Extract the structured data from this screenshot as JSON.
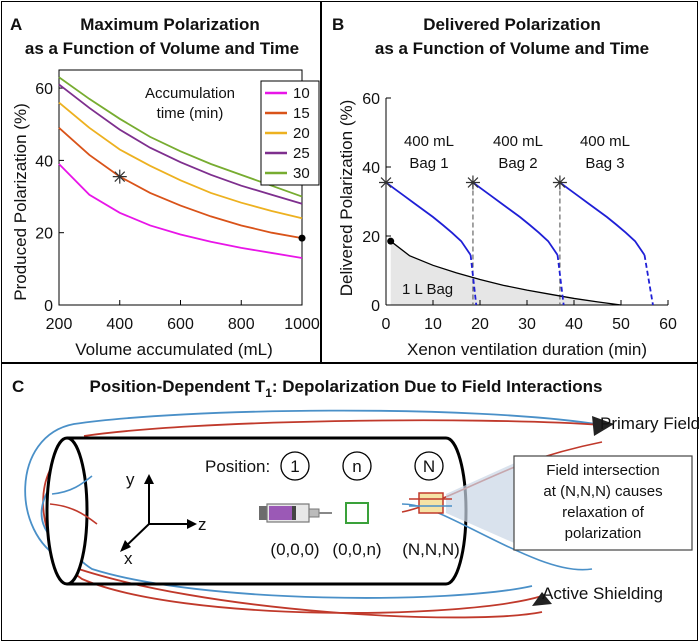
{
  "panel_a": {
    "letter": "A",
    "title_line1": "Maximum Polarization",
    "title_line2": "as a Function of Volume and Time",
    "legend_title_line1": "Accumulation",
    "legend_title_line2": "time (min)"
  },
  "panel_b": {
    "letter": "B",
    "title_line1": "Delivered Polarization",
    "title_line2": "as a Function of Volume and Time",
    "bags": [
      {
        "line1": "400 mL",
        "line2": "Bag 1"
      },
      {
        "line1": "400 mL",
        "line2": "Bag 2"
      },
      {
        "line1": "400 mL",
        "line2": "Bag 3"
      }
    ],
    "big_bag_label": "1 L Bag"
  },
  "panel_c": {
    "letter": "C",
    "title_prefix": "Position-Dependent T",
    "title_sub": "1",
    "title_suffix": ": Depolarization Due to Field Interactions",
    "primary_field_label": "Primary Field",
    "active_shielding_label": "Active Shielding",
    "position_label": "Position:",
    "positions": [
      {
        "id": "1",
        "coord": "(0,0,0)"
      },
      {
        "id": "n",
        "coord": "(0,0,n)"
      },
      {
        "id": "N",
        "coord": "(N,N,N)"
      }
    ],
    "axes": {
      "x": "x",
      "y": "y",
      "z": "z"
    },
    "callout_lines": [
      "Field intersection",
      "at (N,N,N) causes",
      "relaxation of",
      "polarization"
    ],
    "colors": {
      "primary_field": "#4a90c8",
      "active_shielding": "#c0392b",
      "syringe": "#9b59b6",
      "marker_n": "#3aa13a",
      "marker_N_fill": "#f6e3a6"
    }
  },
  "chart_data": [
    {
      "type": "line",
      "title": "Maximum Polarization as a Function of Volume and Time",
      "xlabel": "Volume accumulated (mL)",
      "ylabel": "Produced Polarization (%)",
      "xlim": [
        200,
        1000
      ],
      "ylim": [
        0,
        65
      ],
      "xticks": [
        200,
        400,
        600,
        800,
        1000
      ],
      "yticks": [
        0,
        20,
        40,
        60
      ],
      "legend_title": "Accumulation time (min)",
      "legend_position": "top-right",
      "x": [
        200,
        300,
        400,
        500,
        600,
        700,
        800,
        900,
        1000
      ],
      "series": [
        {
          "name": "10",
          "color": "#e815e8",
          "values": [
            39,
            30.5,
            25.5,
            22,
            19.5,
            17.5,
            15.8,
            14.4,
            13
          ]
        },
        {
          "name": "15",
          "color": "#d95319",
          "values": [
            49,
            41.5,
            35.5,
            31,
            27.5,
            24.5,
            22,
            20,
            18.5
          ]
        },
        {
          "name": "20",
          "color": "#edb120",
          "values": [
            56,
            49,
            43,
            38.5,
            34.5,
            31,
            28.3,
            26,
            24
          ]
        },
        {
          "name": "25",
          "color": "#7e2f8e",
          "values": [
            61,
            54.5,
            48.5,
            43.5,
            39.5,
            36,
            33,
            30.5,
            28
          ]
        },
        {
          "name": "30",
          "color": "#77ac30",
          "values": [
            63,
            57,
            51.5,
            46.5,
            42.5,
            39,
            36,
            33,
            30
          ]
        }
      ],
      "markers": [
        {
          "kind": "star",
          "x": 400,
          "y": 35.5
        },
        {
          "kind": "dot",
          "x": 1000,
          "y": 18.5
        }
      ]
    },
    {
      "type": "line",
      "title": "Delivered Polarization as a Function of Volume and Time",
      "xlabel": "Xenon ventilation duration (min)",
      "ylabel": "Delivered Polarization (%)",
      "xlim": [
        0,
        60
      ],
      "ylim": [
        0,
        60
      ],
      "xticks": [
        0,
        10,
        20,
        30,
        40,
        50,
        60
      ],
      "yticks": [
        0,
        20,
        40,
        60
      ],
      "series": [
        {
          "name": "1 L Bag",
          "color": "#000000",
          "fill": "#e6e6e6",
          "x": [
            1,
            5,
            10,
            15,
            20,
            25,
            30,
            35,
            40,
            45,
            50
          ],
          "values": [
            18.5,
            14.3,
            11.5,
            9.3,
            7.4,
            5.7,
            4.3,
            3.1,
            1.9,
            0.9,
            0
          ]
        },
        {
          "name": "400 mL Bag 1",
          "color": "#1f1fd6",
          "x": [
            0,
            2,
            4,
            6,
            8,
            10,
            12,
            14,
            16,
            18
          ],
          "values": [
            35.5,
            33.5,
            31.5,
            29.5,
            27.5,
            25.5,
            23.3,
            21,
            18.5,
            14.5
          ]
        },
        {
          "name": "400 mL Bag 2",
          "color": "#1f1fd6",
          "x": [
            18.5,
            20.5,
            22.5,
            24.5,
            26.5,
            28.5,
            30.5,
            32.5,
            34.5,
            36.5
          ],
          "values": [
            35.5,
            33.5,
            31.5,
            29.5,
            27.5,
            25.5,
            23.3,
            21,
            18.5,
            14.5
          ]
        },
        {
          "name": "400 mL Bag 3",
          "color": "#1f1fd6",
          "x": [
            37,
            39,
            41,
            43,
            45,
            47,
            49,
            51,
            53,
            55
          ],
          "values": [
            35.5,
            33.5,
            31.5,
            29.5,
            27.5,
            25.5,
            23.3,
            21,
            18.5,
            14.5
          ]
        }
      ],
      "dashed_tails": [
        {
          "x": [
            18,
            19.2
          ],
          "values": [
            14.5,
            0
          ]
        },
        {
          "x": [
            36.5,
            37.8
          ],
          "values": [
            14.5,
            0
          ]
        },
        {
          "x": [
            55,
            56.8
          ],
          "values": [
            14.5,
            0
          ]
        }
      ],
      "dashed_verticals": [
        18.5,
        37
      ],
      "markers": [
        {
          "kind": "star",
          "x": 0,
          "y": 35.5
        },
        {
          "kind": "star",
          "x": 18.5,
          "y": 35.5
        },
        {
          "kind": "star",
          "x": 37,
          "y": 35.5
        },
        {
          "kind": "dot",
          "x": 1,
          "y": 18.5
        }
      ]
    }
  ]
}
